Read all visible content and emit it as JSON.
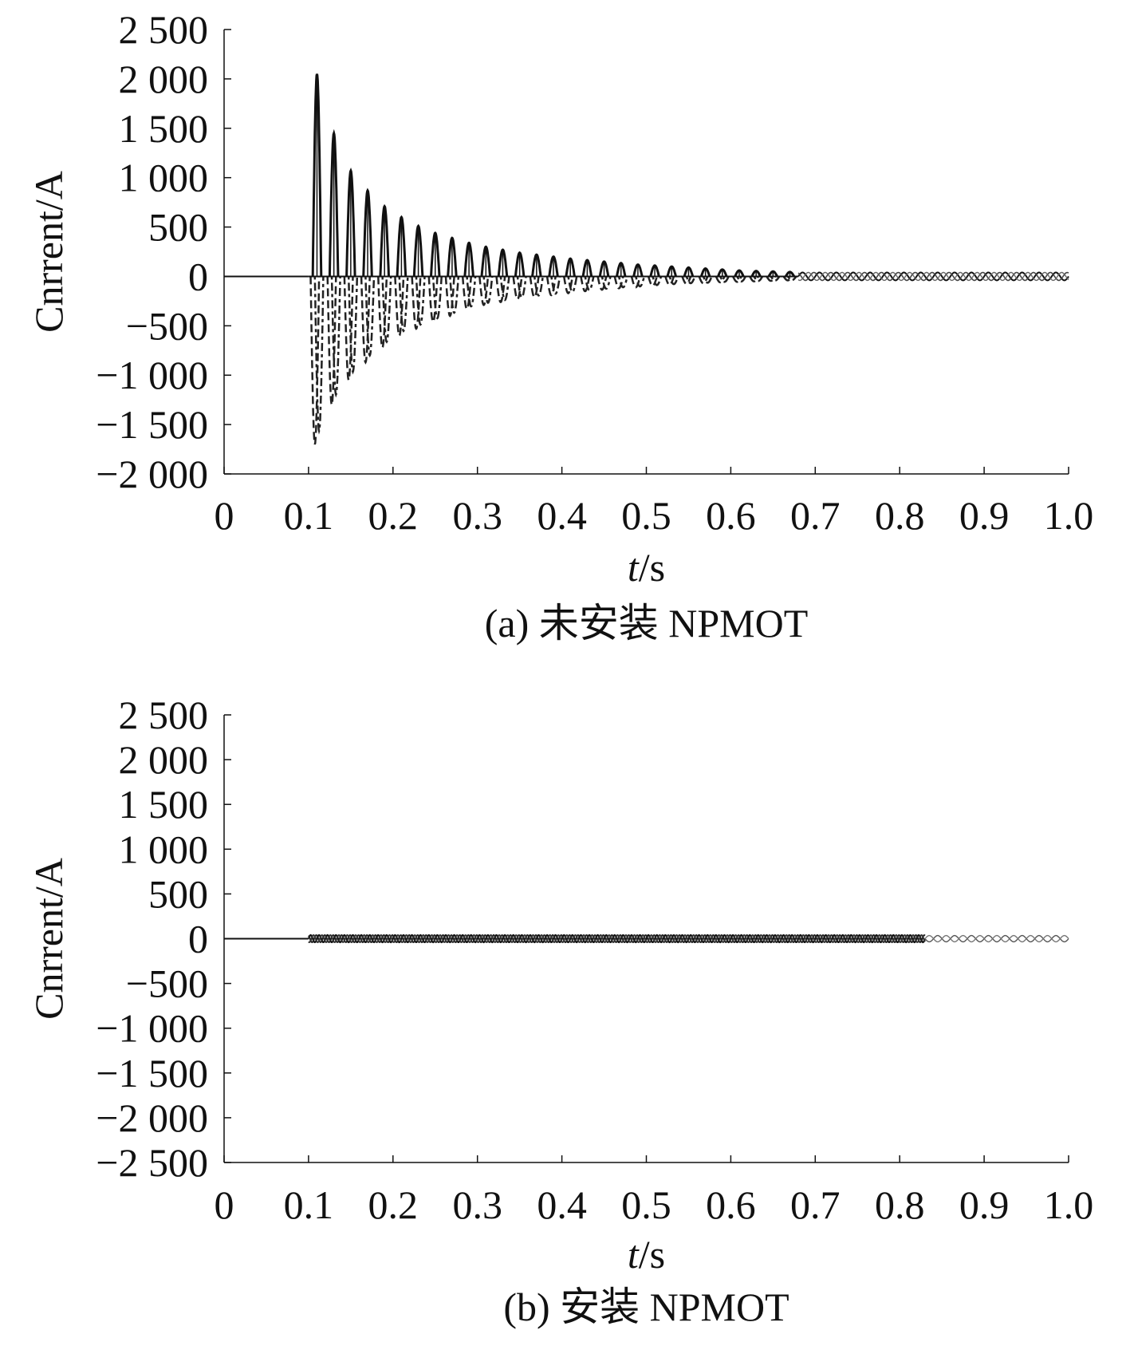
{
  "chart_data": [
    {
      "type": "line",
      "caption": "(a) 未安装 NPMOT",
      "xlabel_var": "t",
      "xlabel_unit": "/s",
      "ylabel": "Cnrrent/A",
      "xlim": [
        0,
        1.0
      ],
      "ylim": [
        -2000,
        2500
      ],
      "xticks": [
        0,
        0.1,
        0.2,
        0.3,
        0.4,
        0.5,
        0.6,
        0.7,
        0.8,
        0.9,
        1.0
      ],
      "xtick_labels": [
        "0",
        "0.1",
        "0.2",
        "0.3",
        "0.4",
        "0.5",
        "0.6",
        "0.7",
        "0.8",
        "0.9",
        "1.0"
      ],
      "yticks": [
        2500,
        2000,
        1500,
        1000,
        500,
        0,
        -500,
        -1000,
        -1500,
        -2000
      ],
      "ytick_labels": [
        "2 500",
        "2 000",
        "1 500",
        "1 000",
        "500",
        "0",
        "−500",
        "−1 000",
        "−1 500",
        "−2 000"
      ],
      "fault_time": 0.1,
      "period": 0.02,
      "positive_peaks": [
        [
          0.11,
          2050
        ],
        [
          0.13,
          1450
        ],
        [
          0.15,
          1070
        ],
        [
          0.17,
          870
        ],
        [
          0.19,
          710
        ],
        [
          0.21,
          600
        ],
        [
          0.23,
          510
        ],
        [
          0.25,
          440
        ],
        [
          0.27,
          390
        ],
        [
          0.29,
          340
        ],
        [
          0.31,
          300
        ],
        [
          0.33,
          270
        ],
        [
          0.35,
          240
        ],
        [
          0.37,
          220
        ],
        [
          0.39,
          200
        ],
        [
          0.41,
          180
        ],
        [
          0.43,
          165
        ],
        [
          0.45,
          150
        ],
        [
          0.47,
          135
        ],
        [
          0.49,
          120
        ],
        [
          0.51,
          110
        ],
        [
          0.53,
          100
        ],
        [
          0.55,
          90
        ],
        [
          0.57,
          80
        ],
        [
          0.59,
          70
        ],
        [
          0.61,
          60
        ],
        [
          0.63,
          55
        ],
        [
          0.65,
          50
        ],
        [
          0.67,
          45
        ]
      ],
      "negative_peaks": [
        [
          0.11,
          -1700
        ],
        [
          0.13,
          -1300
        ],
        [
          0.15,
          -1050
        ],
        [
          0.17,
          -870
        ],
        [
          0.19,
          -720
        ],
        [
          0.21,
          -600
        ],
        [
          0.23,
          -530
        ],
        [
          0.25,
          -460
        ],
        [
          0.27,
          -400
        ],
        [
          0.29,
          -330
        ],
        [
          0.31,
          -290
        ],
        [
          0.33,
          -260
        ],
        [
          0.35,
          -230
        ],
        [
          0.37,
          -210
        ],
        [
          0.39,
          -190
        ],
        [
          0.41,
          -170
        ],
        [
          0.43,
          -150
        ],
        [
          0.45,
          -135
        ],
        [
          0.47,
          -120
        ],
        [
          0.49,
          -110
        ],
        [
          0.51,
          -95
        ],
        [
          0.53,
          -85
        ],
        [
          0.55,
          -75
        ],
        [
          0.57,
          -70
        ],
        [
          0.59,
          -60
        ],
        [
          0.61,
          -55
        ],
        [
          0.63,
          -50
        ],
        [
          0.65,
          -45
        ],
        [
          0.67,
          -40
        ]
      ],
      "steady_ripple_amplitude": 40,
      "steady_ripple_range": [
        0.68,
        1.0
      ]
    },
    {
      "type": "line",
      "caption": "(b) 安装 NPMOT",
      "xlabel_var": "t",
      "xlabel_unit": "/s",
      "ylabel": "Cnrrent/A",
      "xlim": [
        0,
        1.0
      ],
      "ylim": [
        -2500,
        2500
      ],
      "xticks": [
        0,
        0.1,
        0.2,
        0.3,
        0.4,
        0.5,
        0.6,
        0.7,
        0.8,
        0.9,
        1.0
      ],
      "xtick_labels": [
        "0",
        "0.1",
        "0.2",
        "0.3",
        "0.4",
        "0.5",
        "0.6",
        "0.7",
        "0.8",
        "0.9",
        "1.0"
      ],
      "yticks": [
        2500,
        2000,
        1500,
        1000,
        500,
        0,
        -500,
        -1000,
        -1500,
        -2000,
        -2500
      ],
      "ytick_labels": [
        "2 500",
        "2 000",
        "1 500",
        "1 000",
        "500",
        "0",
        "−500",
        "−1 000",
        "−1 500",
        "−2 000",
        "−2 500"
      ],
      "fault_time": 0.1,
      "period": 0.02,
      "dense_ripple_range": [
        0.1,
        0.83
      ],
      "dense_ripple_amplitude": 40,
      "light_ripple_range": [
        0.83,
        1.0
      ],
      "light_ripple_amplitude": 35
    }
  ]
}
